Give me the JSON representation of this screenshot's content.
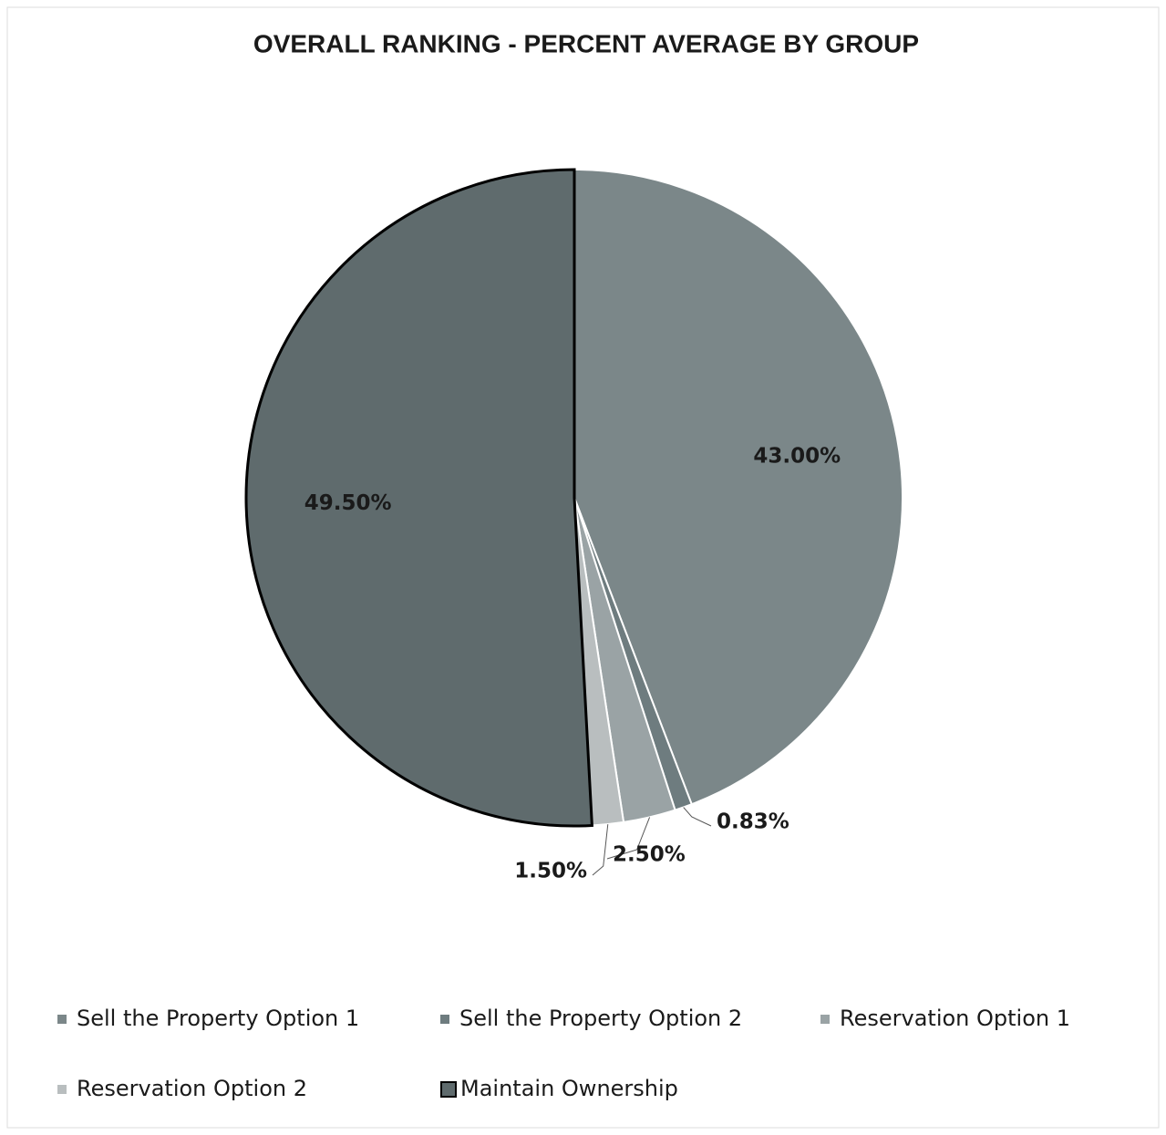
{
  "chart_data": {
    "type": "pie",
    "title": "OVERALL RANKING - PERCENT AVERAGE BY GROUP",
    "categories": [
      "Sell the Property Option 1",
      "Sell the Property Option 2",
      "Reservation Option 1",
      "Reservation Option 2",
      "Maintain Ownership"
    ],
    "values": [
      43,
      0.83,
      2.5,
      1.5,
      49.5
    ],
    "value_labels": [
      "43.00%",
      "0.83%",
      "2.50%",
      "1.50%",
      "49.50%"
    ],
    "colors": [
      "#7b8789",
      "#6e7c7f",
      "#9aa3a5",
      "#b9bebf",
      "#5f6b6d"
    ],
    "legend": "bottom"
  }
}
